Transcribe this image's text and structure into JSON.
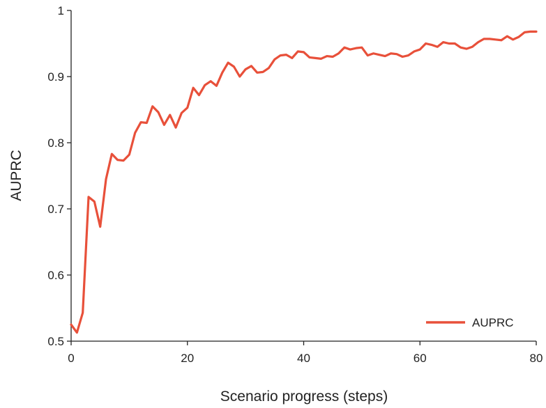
{
  "chart_data": {
    "type": "line",
    "title": "",
    "xlabel": "Scenario progress (steps)",
    "ylabel": "AUPRC",
    "xlim": [
      0,
      80
    ],
    "ylim": [
      0.5,
      1
    ],
    "x_ticks": [
      "0",
      "20",
      "40",
      "60",
      "80"
    ],
    "y_ticks": [
      "0.5",
      "0.6",
      "0.7",
      "0.8",
      "0.9",
      "1"
    ],
    "grid": false,
    "legend_position": "bottom-right",
    "series": [
      {
        "name": "AUPRC",
        "color": "#e8503a",
        "x": [
          0,
          1,
          2,
          3,
          4,
          5,
          6,
          7,
          8,
          9,
          10,
          11,
          12,
          13,
          14,
          15,
          16,
          17,
          18,
          19,
          20,
          21,
          22,
          23,
          24,
          25,
          26,
          27,
          28,
          29,
          30,
          31,
          32,
          33,
          34,
          35,
          36,
          37,
          38,
          39,
          40,
          41,
          42,
          43,
          44,
          45,
          46,
          47,
          48,
          49,
          50,
          51,
          52,
          53,
          54,
          55,
          56,
          57,
          58,
          59,
          60,
          61,
          62,
          63,
          64,
          65,
          66,
          67,
          68,
          69,
          70,
          71,
          72,
          73,
          74,
          75,
          76,
          77,
          78,
          79,
          80
        ],
        "values": [
          0.525,
          0.513,
          0.543,
          0.718,
          0.711,
          0.673,
          0.745,
          0.783,
          0.774,
          0.773,
          0.782,
          0.815,
          0.831,
          0.83,
          0.855,
          0.846,
          0.827,
          0.842,
          0.823,
          0.845,
          0.853,
          0.883,
          0.872,
          0.887,
          0.893,
          0.886,
          0.906,
          0.921,
          0.915,
          0.9,
          0.911,
          0.916,
          0.906,
          0.907,
          0.913,
          0.926,
          0.932,
          0.933,
          0.928,
          0.938,
          0.937,
          0.929,
          0.928,
          0.927,
          0.931,
          0.93,
          0.935,
          0.944,
          0.941,
          0.943,
          0.944,
          0.932,
          0.935,
          0.933,
          0.931,
          0.935,
          0.934,
          0.93,
          0.932,
          0.938,
          0.941,
          0.95,
          0.948,
          0.945,
          0.952,
          0.95,
          0.95,
          0.944,
          0.942,
          0.945,
          0.952,
          0.957,
          0.957,
          0.956,
          0.955,
          0.961,
          0.956,
          0.96,
          0.967,
          0.968,
          0.968
        ]
      }
    ]
  }
}
